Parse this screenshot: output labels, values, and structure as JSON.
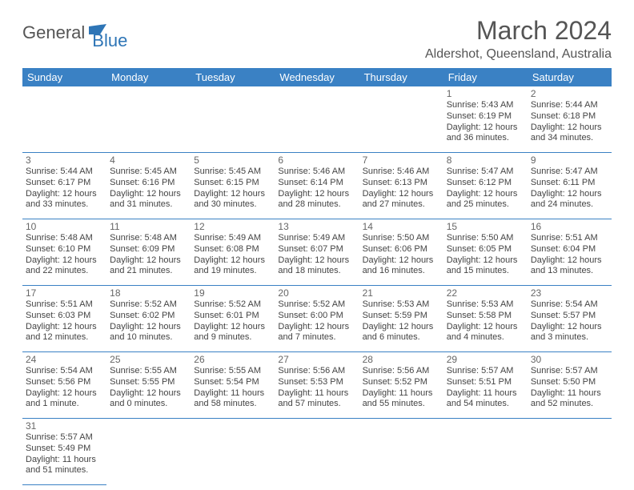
{
  "logo": {
    "general": "General",
    "blue": "Blue"
  },
  "title": "March 2024",
  "location": "Aldershot, Queensland, Australia",
  "colors": {
    "header_bg": "#3a81c4",
    "header_text": "#ffffff",
    "border": "#3a81c4",
    "text": "#444",
    "title_text": "#555"
  },
  "weekdays": [
    "Sunday",
    "Monday",
    "Tuesday",
    "Wednesday",
    "Thursday",
    "Friday",
    "Saturday"
  ],
  "weeks": [
    [
      null,
      null,
      null,
      null,
      null,
      {
        "day": "1",
        "sunrise": "Sunrise: 5:43 AM",
        "sunset": "Sunset: 6:19 PM",
        "daylight1": "Daylight: 12 hours",
        "daylight2": "and 36 minutes."
      },
      {
        "day": "2",
        "sunrise": "Sunrise: 5:44 AM",
        "sunset": "Sunset: 6:18 PM",
        "daylight1": "Daylight: 12 hours",
        "daylight2": "and 34 minutes."
      }
    ],
    [
      {
        "day": "3",
        "sunrise": "Sunrise: 5:44 AM",
        "sunset": "Sunset: 6:17 PM",
        "daylight1": "Daylight: 12 hours",
        "daylight2": "and 33 minutes."
      },
      {
        "day": "4",
        "sunrise": "Sunrise: 5:45 AM",
        "sunset": "Sunset: 6:16 PM",
        "daylight1": "Daylight: 12 hours",
        "daylight2": "and 31 minutes."
      },
      {
        "day": "5",
        "sunrise": "Sunrise: 5:45 AM",
        "sunset": "Sunset: 6:15 PM",
        "daylight1": "Daylight: 12 hours",
        "daylight2": "and 30 minutes."
      },
      {
        "day": "6",
        "sunrise": "Sunrise: 5:46 AM",
        "sunset": "Sunset: 6:14 PM",
        "daylight1": "Daylight: 12 hours",
        "daylight2": "and 28 minutes."
      },
      {
        "day": "7",
        "sunrise": "Sunrise: 5:46 AM",
        "sunset": "Sunset: 6:13 PM",
        "daylight1": "Daylight: 12 hours",
        "daylight2": "and 27 minutes."
      },
      {
        "day": "8",
        "sunrise": "Sunrise: 5:47 AM",
        "sunset": "Sunset: 6:12 PM",
        "daylight1": "Daylight: 12 hours",
        "daylight2": "and 25 minutes."
      },
      {
        "day": "9",
        "sunrise": "Sunrise: 5:47 AM",
        "sunset": "Sunset: 6:11 PM",
        "daylight1": "Daylight: 12 hours",
        "daylight2": "and 24 minutes."
      }
    ],
    [
      {
        "day": "10",
        "sunrise": "Sunrise: 5:48 AM",
        "sunset": "Sunset: 6:10 PM",
        "daylight1": "Daylight: 12 hours",
        "daylight2": "and 22 minutes."
      },
      {
        "day": "11",
        "sunrise": "Sunrise: 5:48 AM",
        "sunset": "Sunset: 6:09 PM",
        "daylight1": "Daylight: 12 hours",
        "daylight2": "and 21 minutes."
      },
      {
        "day": "12",
        "sunrise": "Sunrise: 5:49 AM",
        "sunset": "Sunset: 6:08 PM",
        "daylight1": "Daylight: 12 hours",
        "daylight2": "and 19 minutes."
      },
      {
        "day": "13",
        "sunrise": "Sunrise: 5:49 AM",
        "sunset": "Sunset: 6:07 PM",
        "daylight1": "Daylight: 12 hours",
        "daylight2": "and 18 minutes."
      },
      {
        "day": "14",
        "sunrise": "Sunrise: 5:50 AM",
        "sunset": "Sunset: 6:06 PM",
        "daylight1": "Daylight: 12 hours",
        "daylight2": "and 16 minutes."
      },
      {
        "day": "15",
        "sunrise": "Sunrise: 5:50 AM",
        "sunset": "Sunset: 6:05 PM",
        "daylight1": "Daylight: 12 hours",
        "daylight2": "and 15 minutes."
      },
      {
        "day": "16",
        "sunrise": "Sunrise: 5:51 AM",
        "sunset": "Sunset: 6:04 PM",
        "daylight1": "Daylight: 12 hours",
        "daylight2": "and 13 minutes."
      }
    ],
    [
      {
        "day": "17",
        "sunrise": "Sunrise: 5:51 AM",
        "sunset": "Sunset: 6:03 PM",
        "daylight1": "Daylight: 12 hours",
        "daylight2": "and 12 minutes."
      },
      {
        "day": "18",
        "sunrise": "Sunrise: 5:52 AM",
        "sunset": "Sunset: 6:02 PM",
        "daylight1": "Daylight: 12 hours",
        "daylight2": "and 10 minutes."
      },
      {
        "day": "19",
        "sunrise": "Sunrise: 5:52 AM",
        "sunset": "Sunset: 6:01 PM",
        "daylight1": "Daylight: 12 hours",
        "daylight2": "and 9 minutes."
      },
      {
        "day": "20",
        "sunrise": "Sunrise: 5:52 AM",
        "sunset": "Sunset: 6:00 PM",
        "daylight1": "Daylight: 12 hours",
        "daylight2": "and 7 minutes."
      },
      {
        "day": "21",
        "sunrise": "Sunrise: 5:53 AM",
        "sunset": "Sunset: 5:59 PM",
        "daylight1": "Daylight: 12 hours",
        "daylight2": "and 6 minutes."
      },
      {
        "day": "22",
        "sunrise": "Sunrise: 5:53 AM",
        "sunset": "Sunset: 5:58 PM",
        "daylight1": "Daylight: 12 hours",
        "daylight2": "and 4 minutes."
      },
      {
        "day": "23",
        "sunrise": "Sunrise: 5:54 AM",
        "sunset": "Sunset: 5:57 PM",
        "daylight1": "Daylight: 12 hours",
        "daylight2": "and 3 minutes."
      }
    ],
    [
      {
        "day": "24",
        "sunrise": "Sunrise: 5:54 AM",
        "sunset": "Sunset: 5:56 PM",
        "daylight1": "Daylight: 12 hours",
        "daylight2": "and 1 minute."
      },
      {
        "day": "25",
        "sunrise": "Sunrise: 5:55 AM",
        "sunset": "Sunset: 5:55 PM",
        "daylight1": "Daylight: 12 hours",
        "daylight2": "and 0 minutes."
      },
      {
        "day": "26",
        "sunrise": "Sunrise: 5:55 AM",
        "sunset": "Sunset: 5:54 PM",
        "daylight1": "Daylight: 11 hours",
        "daylight2": "and 58 minutes."
      },
      {
        "day": "27",
        "sunrise": "Sunrise: 5:56 AM",
        "sunset": "Sunset: 5:53 PM",
        "daylight1": "Daylight: 11 hours",
        "daylight2": "and 57 minutes."
      },
      {
        "day": "28",
        "sunrise": "Sunrise: 5:56 AM",
        "sunset": "Sunset: 5:52 PM",
        "daylight1": "Daylight: 11 hours",
        "daylight2": "and 55 minutes."
      },
      {
        "day": "29",
        "sunrise": "Sunrise: 5:57 AM",
        "sunset": "Sunset: 5:51 PM",
        "daylight1": "Daylight: 11 hours",
        "daylight2": "and 54 minutes."
      },
      {
        "day": "30",
        "sunrise": "Sunrise: 5:57 AM",
        "sunset": "Sunset: 5:50 PM",
        "daylight1": "Daylight: 11 hours",
        "daylight2": "and 52 minutes."
      }
    ],
    [
      {
        "day": "31",
        "sunrise": "Sunrise: 5:57 AM",
        "sunset": "Sunset: 5:49 PM",
        "daylight1": "Daylight: 11 hours",
        "daylight2": "and 51 minutes."
      },
      null,
      null,
      null,
      null,
      null,
      null
    ]
  ]
}
